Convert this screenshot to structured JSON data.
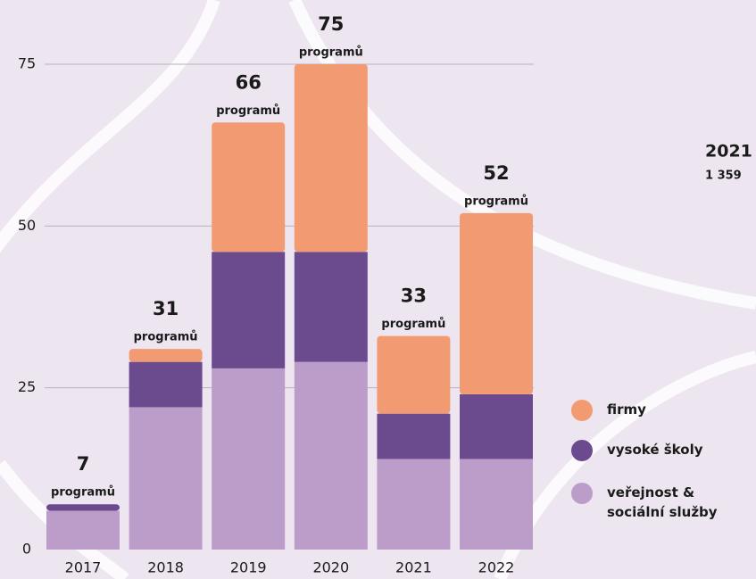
{
  "chart_data": {
    "type": "stacked_bar",
    "categories": [
      "2017",
      "2018",
      "2019",
      "2020",
      "2021",
      "2022"
    ],
    "series": [
      {
        "name": "firmy",
        "color": "#f29b72",
        "values": [
          0,
          2,
          20,
          29,
          12,
          28
        ]
      },
      {
        "name": "vysoké školy",
        "color": "#6b4a8e",
        "values": [
          1,
          7,
          18,
          17,
          7,
          10
        ]
      },
      {
        "name": "veřejnost & sociální služby",
        "color": "#bc9cc9",
        "values": [
          6,
          22,
          28,
          29,
          14,
          14
        ]
      }
    ],
    "totals": [
      7,
      31,
      66,
      75,
      33,
      52
    ],
    "total_unit": "programů",
    "ylim": [
      0,
      75
    ],
    "yticks": [
      0,
      25,
      50,
      75
    ],
    "grid": true,
    "annotations": [
      "2021",
      "1 359"
    ]
  }
}
